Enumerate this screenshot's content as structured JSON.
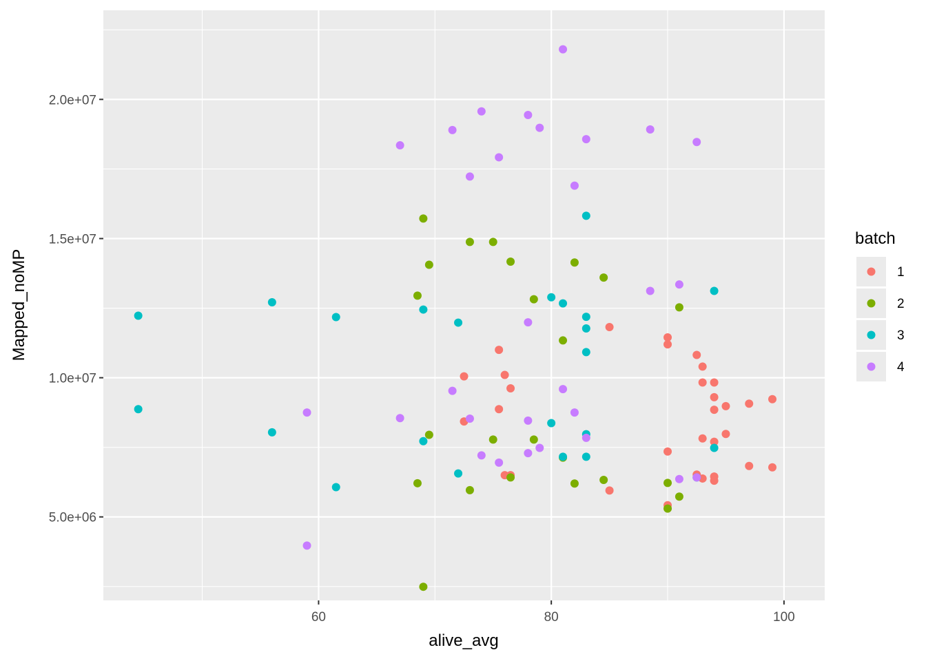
{
  "chart_data": {
    "type": "scatter",
    "title": "",
    "xlabel": "alive_avg",
    "ylabel": "Mapped_noMP",
    "xlim": [
      41.5,
      103.5
    ],
    "ylim": [
      2000000,
      23200000
    ],
    "x_ticks": [
      60,
      80,
      100
    ],
    "x_tick_labels": [
      "60",
      "80",
      "100"
    ],
    "x_minor_ticks": [
      50,
      70,
      90
    ],
    "y_ticks": [
      5000000,
      10000000,
      15000000,
      20000000
    ],
    "y_tick_labels": [
      "5.0e+06",
      "1.0e+07",
      "1.5e+07",
      "2.0e+07"
    ],
    "y_minor_ticks": [
      2500000,
      7500000,
      12500000,
      17500000,
      22500000
    ],
    "grid": true,
    "legend": {
      "title": "batch",
      "placement": "right"
    },
    "series": [
      {
        "name": "1",
        "color": "#F8766D",
        "points": [
          [
            72.5,
            10050000
          ],
          [
            76,
            10100000
          ],
          [
            76.5,
            9620000
          ],
          [
            75.5,
            11000000
          ],
          [
            75.5,
            8870000
          ],
          [
            72.5,
            8430000
          ],
          [
            76,
            6500000
          ],
          [
            76.5,
            6500000
          ],
          [
            85,
            11820000
          ],
          [
            85,
            5950000
          ],
          [
            90,
            11450000
          ],
          [
            90,
            11200000
          ],
          [
            90,
            7350000
          ],
          [
            90,
            5420000
          ],
          [
            92.5,
            10820000
          ],
          [
            93,
            10400000
          ],
          [
            93,
            9830000
          ],
          [
            94,
            9830000
          ],
          [
            94,
            9300000
          ],
          [
            94,
            8850000
          ],
          [
            95,
            8980000
          ],
          [
            97,
            9070000
          ],
          [
            99,
            9230000
          ],
          [
            93,
            7820000
          ],
          [
            94,
            7700000
          ],
          [
            95,
            7980000
          ],
          [
            92.5,
            6520000
          ],
          [
            93,
            6380000
          ],
          [
            94,
            6450000
          ],
          [
            94,
            6300000
          ],
          [
            97,
            6830000
          ],
          [
            99,
            6780000
          ]
        ]
      },
      {
        "name": "2",
        "color": "#7CAE00",
        "points": [
          [
            69,
            15720000
          ],
          [
            73,
            14880000
          ],
          [
            75,
            14880000
          ],
          [
            76.5,
            14170000
          ],
          [
            69.5,
            14060000
          ],
          [
            82,
            14140000
          ],
          [
            84.5,
            13600000
          ],
          [
            68.5,
            12950000
          ],
          [
            78.5,
            12820000
          ],
          [
            91,
            12530000
          ],
          [
            81,
            11340000
          ],
          [
            69.5,
            7950000
          ],
          [
            75,
            7780000
          ],
          [
            78.5,
            7780000
          ],
          [
            81,
            7130000
          ],
          [
            68.5,
            6210000
          ],
          [
            73,
            5960000
          ],
          [
            76.5,
            6420000
          ],
          [
            82,
            6200000
          ],
          [
            84.5,
            6330000
          ],
          [
            90,
            6220000
          ],
          [
            91,
            5730000
          ],
          [
            90,
            5300000
          ],
          [
            69,
            2490000
          ]
        ]
      },
      {
        "name": "3",
        "color": "#00BFC4",
        "points": [
          [
            44.5,
            12230000
          ],
          [
            56,
            12710000
          ],
          [
            61.5,
            12180000
          ],
          [
            44.5,
            8870000
          ],
          [
            56,
            8040000
          ],
          [
            61.5,
            6070000
          ],
          [
            69,
            12450000
          ],
          [
            72,
            11980000
          ],
          [
            69,
            7720000
          ],
          [
            72,
            6560000
          ],
          [
            80,
            12890000
          ],
          [
            81,
            12670000
          ],
          [
            83,
            15820000
          ],
          [
            83,
            12190000
          ],
          [
            83,
            11770000
          ],
          [
            83,
            10920000
          ],
          [
            80,
            8370000
          ],
          [
            83,
            7970000
          ],
          [
            81,
            7160000
          ],
          [
            83,
            7160000
          ],
          [
            94,
            13120000
          ],
          [
            94,
            7480000
          ],
          [
            92.5,
            6420000
          ]
        ]
      },
      {
        "name": "4",
        "color": "#C77CFF",
        "points": [
          [
            81,
            21800000
          ],
          [
            74,
            19570000
          ],
          [
            78,
            19440000
          ],
          [
            79,
            18980000
          ],
          [
            71.5,
            18900000
          ],
          [
            88.5,
            18920000
          ],
          [
            67,
            18350000
          ],
          [
            83,
            18570000
          ],
          [
            92.5,
            18470000
          ],
          [
            75.5,
            17920000
          ],
          [
            73,
            17230000
          ],
          [
            82,
            16900000
          ],
          [
            91,
            13350000
          ],
          [
            88.5,
            13120000
          ],
          [
            78,
            11990000
          ],
          [
            81,
            9590000
          ],
          [
            71.5,
            9530000
          ],
          [
            59,
            8750000
          ],
          [
            67,
            8550000
          ],
          [
            73,
            8530000
          ],
          [
            78,
            8460000
          ],
          [
            82,
            8750000
          ],
          [
            83,
            7840000
          ],
          [
            74,
            7210000
          ],
          [
            78,
            7290000
          ],
          [
            79,
            7480000
          ],
          [
            75.5,
            6950000
          ],
          [
            91,
            6360000
          ],
          [
            92.5,
            6420000
          ],
          [
            59,
            3970000
          ]
        ]
      }
    ]
  }
}
